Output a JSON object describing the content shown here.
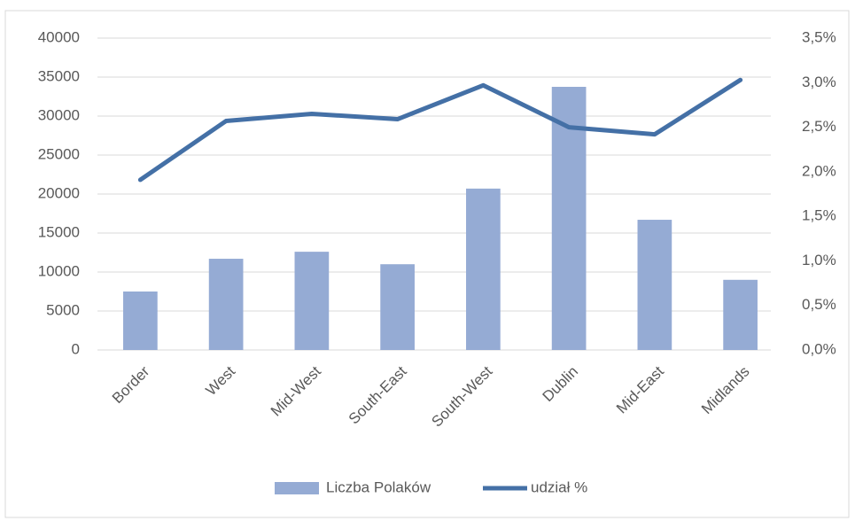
{
  "chart_data": {
    "type": "bar-line",
    "categories": [
      "Border",
      "West",
      "Mid-West",
      "South-East",
      "South-West",
      "Dublin",
      "Mid-East",
      "Midlands"
    ],
    "series": [
      {
        "name": "Liczba Polaków",
        "type": "bar",
        "color": "#95abd4",
        "values": [
          7500,
          11700,
          12600,
          11000,
          20700,
          33750,
          16700,
          9000
        ]
      },
      {
        "name": "udział %",
        "type": "line",
        "axis": "y2",
        "color": "#4470a6",
        "values": [
          1.91,
          2.57,
          2.65,
          2.59,
          2.97,
          2.5,
          2.42,
          3.03
        ]
      }
    ],
    "ylim": [
      0,
      40000
    ],
    "yticks": [
      0,
      5000,
      10000,
      15000,
      20000,
      25000,
      30000,
      35000,
      40000
    ],
    "y2lim": [
      0,
      3.5
    ],
    "y2ticks": [
      {
        "value": 0,
        "label": "0,0%"
      },
      {
        "value": 0.5,
        "label": "0,5%"
      },
      {
        "value": 1,
        "label": "1,0%"
      },
      {
        "value": 1.5,
        "label": "1,5%"
      },
      {
        "value": 2,
        "label": "2,0%"
      },
      {
        "value": 2.5,
        "label": "2,5%"
      },
      {
        "value": 3,
        "label": "3,0%"
      },
      {
        "value": 3.5,
        "label": "3,5%"
      }
    ],
    "grid": true,
    "legend": "bottom"
  }
}
